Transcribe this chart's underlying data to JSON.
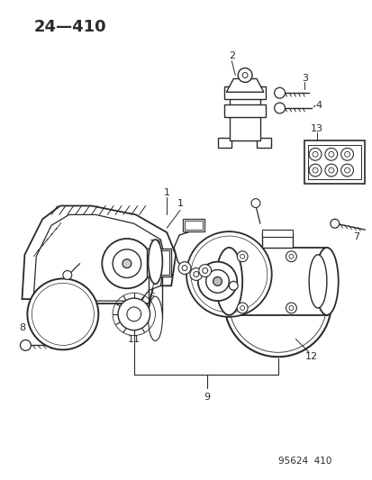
{
  "title": "24—410",
  "catalog_num": "95624  410",
  "bg_color": "#ffffff",
  "line_color": "#2a2a2a",
  "figsize": [
    4.14,
    5.33
  ],
  "dpi": 100
}
